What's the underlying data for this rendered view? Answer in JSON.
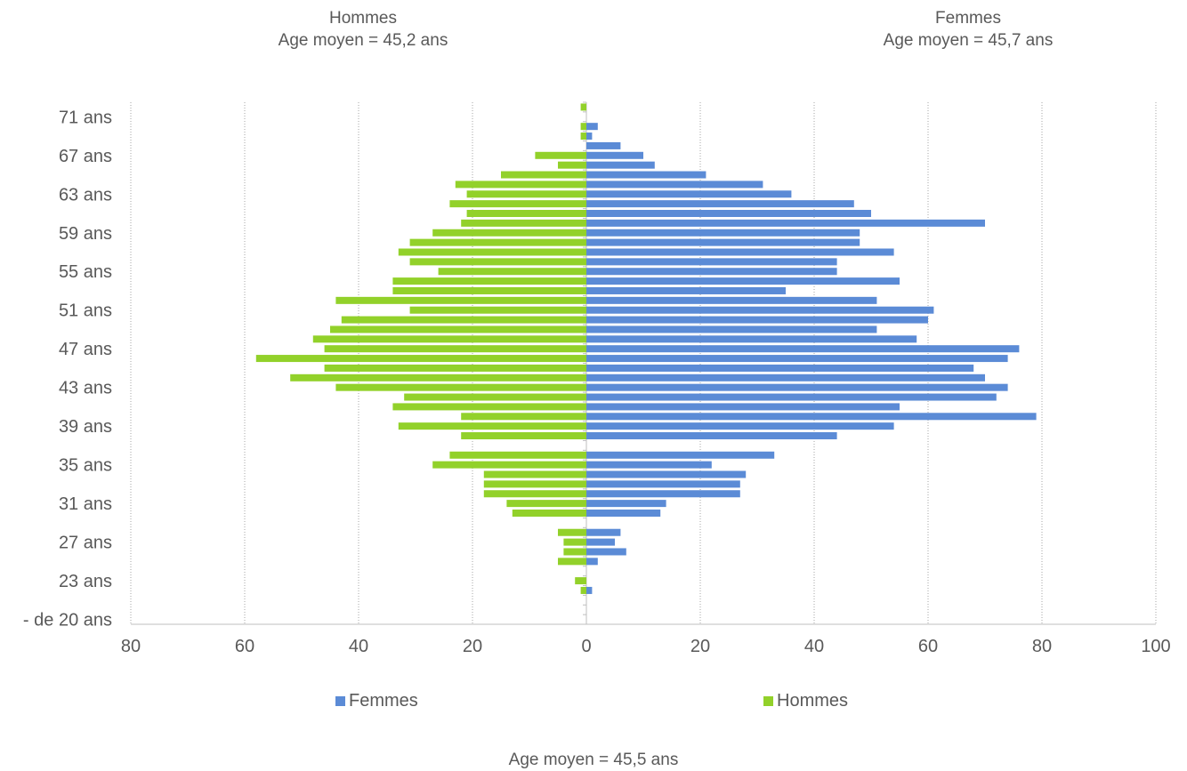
{
  "annotations": {
    "hommes_title": "Hommes",
    "hommes_age": "Age moyen = 45,2 ans",
    "femmes_title": "Femmes",
    "femmes_age": "Age moyen = 45,7 ans",
    "overall_age": "Age moyen  = 45,5 ans"
  },
  "colors": {
    "femmes": "#5b8bd6",
    "hommes": "#92d12a",
    "grid": "#a6a6a6",
    "axis": "#bfbfbf",
    "text": "#595959"
  },
  "chart_data": {
    "type": "bar",
    "orientation": "horizontal",
    "title": "",
    "xlabel": "",
    "ylabel": "",
    "xlim": [
      -80,
      100
    ],
    "x_ticks": [
      -80,
      -60,
      -40,
      -20,
      0,
      20,
      40,
      60,
      80,
      100
    ],
    "x_tick_labels": [
      "80",
      "60",
      "40",
      "20",
      "0",
      "20",
      "40",
      "60",
      "80",
      "100"
    ],
    "grid": "vertical dotted",
    "legend_position": "bottom",
    "categories": [
      "- de 20 ans",
      "20 ans",
      "21 ans",
      "22 ans",
      "23 ans",
      "24 ans",
      "25 ans",
      "26 ans",
      "27 ans",
      "28 ans",
      "29 ans",
      "30 ans",
      "31 ans",
      "32 ans",
      "33 ans",
      "34 ans",
      "35 ans",
      "36 ans",
      "37 ans",
      "38 ans",
      "39 ans",
      "40 ans",
      "41 ans",
      "42 ans",
      "43 ans",
      "44 ans",
      "45 ans",
      "46 ans",
      "47 ans",
      "48 ans",
      "49 ans",
      "50 ans",
      "51 ans",
      "52 ans",
      "53 ans",
      "54 ans",
      "55 ans",
      "56 ans",
      "57 ans",
      "58 ans",
      "59 ans",
      "60 ans",
      "61 ans",
      "62 ans",
      "63 ans",
      "64 ans",
      "65 ans",
      "66 ans",
      "67 ans",
      "68 ans",
      "69 ans",
      "70 ans",
      "71 ans",
      "72 ans"
    ],
    "category_tick_labels": [
      "- de 20 ans",
      "23 ans",
      "27 ans",
      "31 ans",
      "35 ans",
      "39 ans",
      "43 ans",
      "47 ans",
      "51 ans",
      "55 ans",
      "59 ans",
      "63 ans",
      "67 ans",
      "71 ans"
    ],
    "series": [
      {
        "name": "Femmes",
        "color": "#5b8bd6",
        "values": [
          0,
          0,
          0,
          1,
          0,
          0,
          2,
          7,
          5,
          6,
          0,
          13,
          14,
          27,
          27,
          28,
          22,
          33,
          0,
          44,
          54,
          79,
          55,
          72,
          74,
          70,
          68,
          74,
          76,
          58,
          51,
          60,
          61,
          51,
          35,
          55,
          44,
          44,
          54,
          48,
          48,
          70,
          50,
          47,
          36,
          31,
          21,
          12,
          10,
          6,
          1,
          2,
          0,
          0
        ]
      },
      {
        "name": "Hommes",
        "color": "#92d12a",
        "values": [
          0,
          0,
          0,
          -1,
          -2,
          0,
          -5,
          -4,
          -4,
          -5,
          0,
          -13,
          -14,
          -18,
          -18,
          -18,
          -27,
          -24,
          0,
          -22,
          -33,
          -22,
          -34,
          -32,
          -44,
          -52,
          -46,
          -58,
          -46,
          -48,
          -45,
          -43,
          -31,
          -44,
          -34,
          -34,
          -26,
          -31,
          -33,
          -31,
          -27,
          -22,
          -21,
          -24,
          -21,
          -23,
          -15,
          -5,
          -9,
          0,
          -1,
          -1,
          0,
          -1
        ]
      }
    ]
  }
}
